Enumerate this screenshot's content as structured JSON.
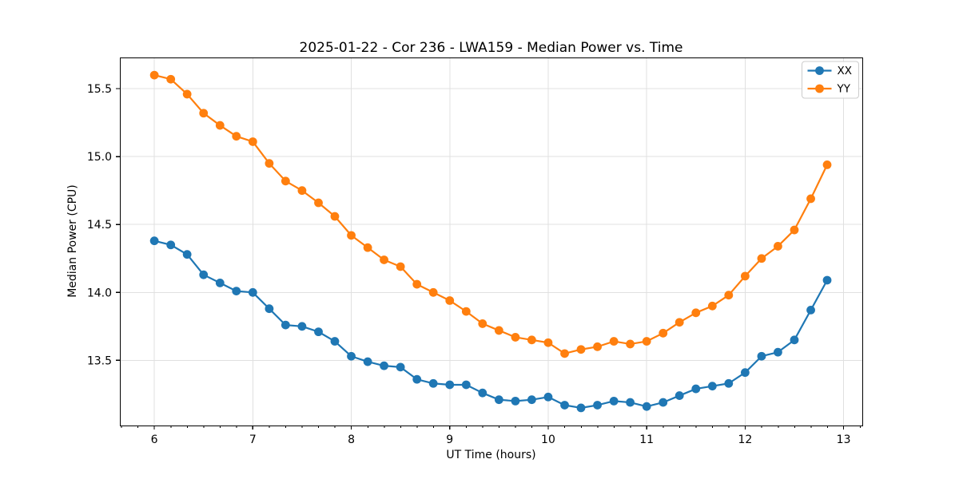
{
  "chart_data": {
    "type": "line",
    "title": "2025-01-22 - Cor 236 - LWA159 - Median Power vs. Time",
    "xlabel": "UT Time (hours)",
    "ylabel": "Median Power (CPU)",
    "xlim": [
      5.65,
      13.19
    ],
    "ylim": [
      13.02,
      15.73
    ],
    "x_ticks": [
      6,
      7,
      8,
      9,
      10,
      11,
      12,
      13
    ],
    "x_minor_tick_step": 0.1667,
    "y_ticks": [
      13.5,
      14.0,
      14.5,
      15.0,
      15.5
    ],
    "grid": true,
    "grid_color": "#e0e0e0",
    "legend_position": "upper right",
    "marker": "circle",
    "x": [
      6.0,
      6.167,
      6.333,
      6.5,
      6.667,
      6.833,
      7.0,
      7.167,
      7.333,
      7.5,
      7.667,
      7.833,
      8.0,
      8.167,
      8.333,
      8.5,
      8.667,
      8.833,
      9.0,
      9.167,
      9.333,
      9.5,
      9.667,
      9.833,
      10.0,
      10.167,
      10.333,
      10.5,
      10.667,
      10.833,
      11.0,
      11.167,
      11.333,
      11.5,
      11.667,
      11.833,
      12.0,
      12.167,
      12.333,
      12.5,
      12.667,
      12.833
    ],
    "series": [
      {
        "name": "XX",
        "color": "#1f77b4",
        "values": [
          14.38,
          14.35,
          14.28,
          14.13,
          14.07,
          14.01,
          14.0,
          13.88,
          13.76,
          13.75,
          13.71,
          13.64,
          13.53,
          13.49,
          13.46,
          13.45,
          13.36,
          13.33,
          13.32,
          13.32,
          13.26,
          13.21,
          13.2,
          13.21,
          13.23,
          13.17,
          13.15,
          13.17,
          13.2,
          13.19,
          13.16,
          13.19,
          13.24,
          13.29,
          13.31,
          13.33,
          13.41,
          13.53,
          13.56,
          13.65,
          13.87,
          14.09
        ]
      },
      {
        "name": "YY",
        "color": "#ff7f0e",
        "values": [
          15.6,
          15.57,
          15.46,
          15.32,
          15.23,
          15.15,
          15.11,
          14.95,
          14.82,
          14.75,
          14.66,
          14.56,
          14.42,
          14.33,
          14.24,
          14.19,
          14.06,
          14.0,
          13.94,
          13.86,
          13.77,
          13.72,
          13.67,
          13.65,
          13.63,
          13.55,
          13.58,
          13.6,
          13.64,
          13.62,
          13.64,
          13.7,
          13.78,
          13.85,
          13.9,
          13.98,
          14.12,
          14.25,
          14.34,
          14.46,
          14.69,
          14.94
        ]
      }
    ]
  }
}
